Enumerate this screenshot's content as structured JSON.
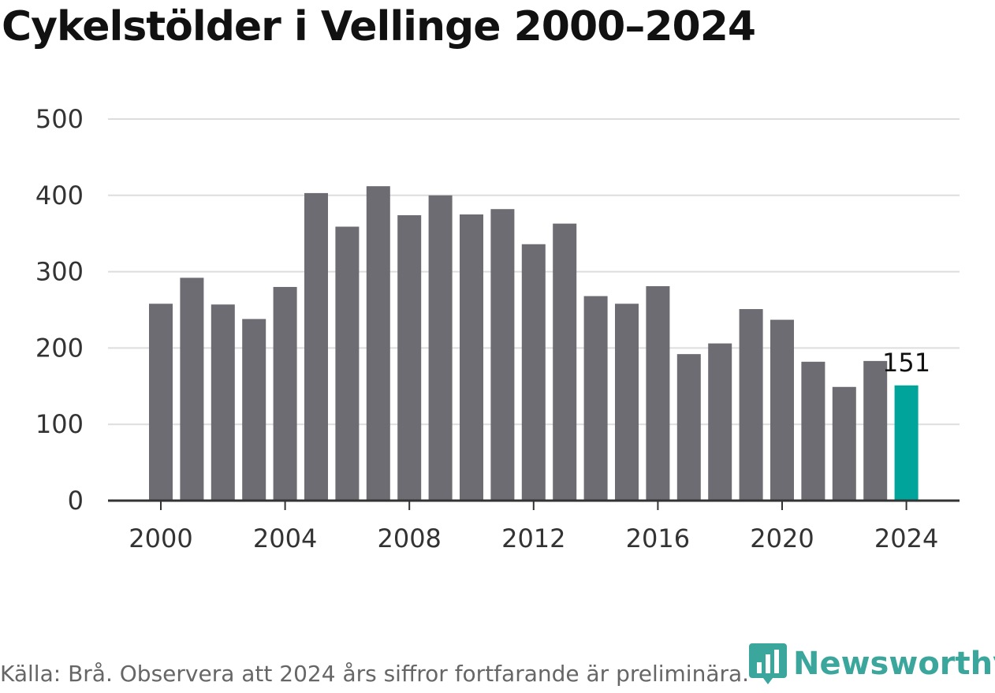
{
  "title": "Cykelstölder i Vellinge 2000–2024",
  "source": "Källa: Brå. Observera att 2024 års siffror fortfarande är preliminära.",
  "brand": {
    "name": "Newsworthy",
    "icon": "bar-chart-logo-icon",
    "color": "#3aa69c"
  },
  "chart_data": {
    "type": "bar",
    "title": "Cykelstölder i Vellinge 2000–2024",
    "xlabel": "",
    "ylabel": "",
    "ylim": [
      0,
      500
    ],
    "yticks": [
      0,
      100,
      200,
      300,
      400,
      500
    ],
    "xtick_labels": [
      "2000",
      "2004",
      "2008",
      "2012",
      "2016",
      "2020",
      "2024"
    ],
    "grid": true,
    "colors": {
      "bar": "#6d6c73",
      "highlight": "#00a49a",
      "grid": "#dddddd",
      "axis": "#333333"
    },
    "categories": [
      "2000",
      "2001",
      "2002",
      "2003",
      "2004",
      "2005",
      "2006",
      "2007",
      "2008",
      "2009",
      "2010",
      "2011",
      "2012",
      "2013",
      "2014",
      "2015",
      "2016",
      "2017",
      "2018",
      "2019",
      "2020",
      "2021",
      "2022",
      "2023",
      "2024"
    ],
    "values": [
      258,
      292,
      257,
      238,
      280,
      403,
      359,
      412,
      374,
      400,
      375,
      382,
      336,
      363,
      268,
      258,
      281,
      192,
      206,
      251,
      237,
      182,
      149,
      183,
      151
    ],
    "highlight": {
      "category": "2024",
      "label": "151"
    }
  }
}
